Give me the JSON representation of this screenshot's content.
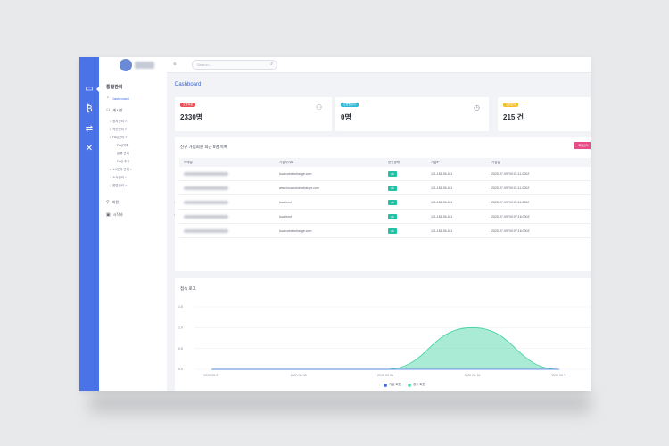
{
  "colors": {
    "rail": "#4a73e8",
    "accent": "#3c5fc8",
    "success": "#25c1a6",
    "danger": "#e84b86",
    "area": "#62dbb3"
  },
  "rail": {
    "icons": [
      "monitor-icon",
      "bitcoin-icon",
      "handshake-icon",
      "tools-icon"
    ]
  },
  "sidebar": {
    "title": "통합관리",
    "dashboard": "Dashboard",
    "groups": [
      {
        "label": "게시판",
        "icon": "people-icon"
      },
      {
        "label": "회원",
        "icon": "user-icon"
      },
      {
        "label": "시작바",
        "icon": "window-icon"
      }
    ],
    "subitems": [
      "공지관리 >",
      "약관관리 >",
      "FAQ관리 >",
      "FAQ목록",
      "분류 관리",
      "FAQ 추가",
      "1:1문의 관리 >",
      "소식관리 >",
      "팝업관리 >"
    ]
  },
  "topbar": {
    "search_placeholder": "Search..."
  },
  "page": {
    "title": "Dashboard"
  },
  "cards": [
    {
      "badge": "오늘회원",
      "value": "2330명",
      "badge_color": "#e8525a",
      "icon": "user-add-icon"
    },
    {
      "badge": "오늘방문자",
      "value": "0명",
      "badge_color": "#2fb8d8",
      "icon": "clock-icon"
    },
    {
      "badge": "오늘문의",
      "value": "215 건",
      "badge_color": "#f0c030",
      "icon": ""
    }
  ],
  "members": {
    "title": "신규 가입회원 최근 5명 목록",
    "button": "회원관리",
    "columns": [
      "이메일",
      "가입사이트",
      "승인상태",
      "가입IP",
      "가입일"
    ],
    "rows": [
      {
        "site": "localcoinexchange.com",
        "status": "Ok",
        "ip": "121.181.36.161",
        "date": "2020-07-09T00:01:11.000Z"
      },
      {
        "site": "www.localcoinexchange.com",
        "status": "Ok",
        "ip": "121.181.36.161",
        "date": "2020-07-09T00:01:11.000Z"
      },
      {
        "site": "localhost",
        "status": "Ok",
        "ip": "121.181.36.161",
        "date": "2020-07-09T00:01:11.000Z"
      },
      {
        "site": "localhost",
        "status": "Ok",
        "ip": "121.181.36.161",
        "date": "2020-07-09T00:07:16.000Z"
      },
      {
        "site": "localcoinexchange.com",
        "status": "Ok",
        "ip": "121.181.36.161",
        "date": "2020-07-09T00:07:16.000Z"
      }
    ]
  },
  "chart_card": {
    "title": "접속 로그"
  },
  "chart_data": {
    "type": "area",
    "x": [
      "2020-09-07",
      "2020-09-08",
      "2020-09-09",
      "2020-09-10",
      "2020-09-11"
    ],
    "series": [
      {
        "name": "가입 회원",
        "values": [
          0,
          0,
          0,
          0,
          0
        ],
        "color": "#4a73e8"
      },
      {
        "name": "접속 회원",
        "values": [
          0,
          0,
          0,
          1,
          0
        ],
        "color": "#62dbb3"
      }
    ],
    "yticks": [
      "0.0",
      "0.5",
      "1.0",
      "1.5"
    ],
    "ylim": [
      0,
      1.5
    ],
    "grid": true,
    "legend": "bottom-center"
  }
}
